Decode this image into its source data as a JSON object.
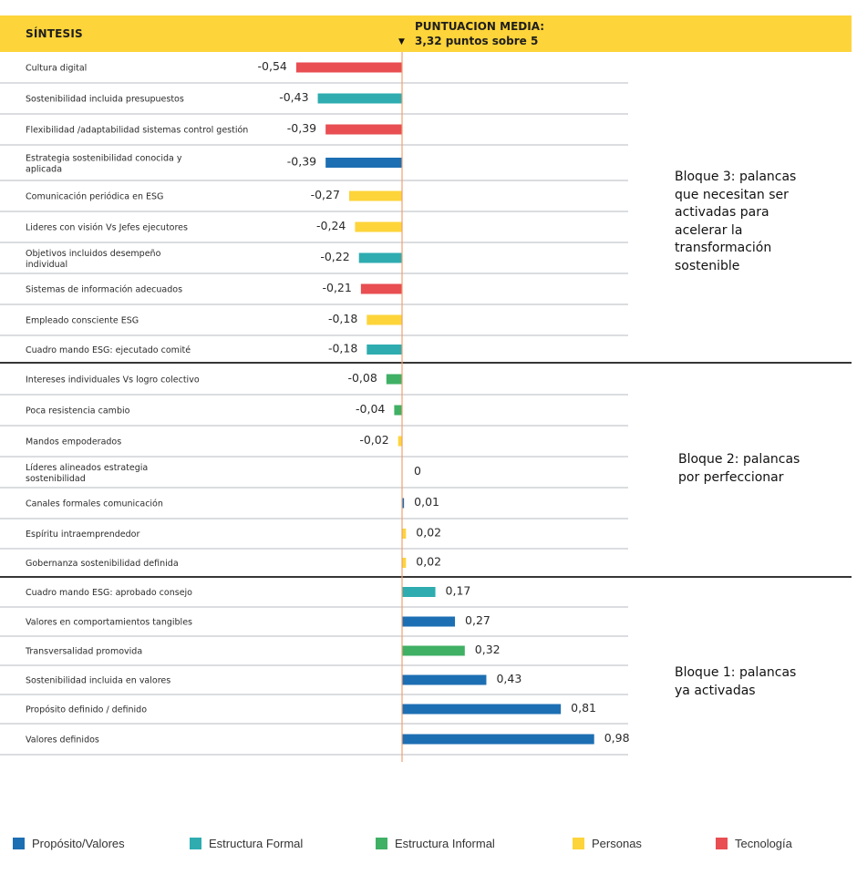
{
  "header": {
    "title": "SÍNTESIS",
    "mean_line1": "PUNTUACION MEDIA:",
    "mean_line2": "3,32 puntos sobre 5",
    "arrow": "▼",
    "color": "#fdd43a"
  },
  "colors": {
    "Propósito/Valores": "#1d6fb3",
    "Estructura Formal": "#2eacb0",
    "Estructura Informal": "#3fb064",
    "Personas": "#fdd43a",
    "Tecnología": "#e84e52",
    "zero_line": "#f0a070"
  },
  "blocks": [
    {
      "id": 3,
      "label": "Bloque 3: palancas que necesitan ser activadas para acelerar la transformación sostenible",
      "lines": [
        "Bloque 3: palancas",
        "que necesitan ser",
        "activadas para",
        "acelerar la",
        "transformación",
        "sostenible"
      ]
    },
    {
      "id": 2,
      "label": "Bloque 2: palancas por perfeccionar",
      "lines": [
        "Bloque 2: palancas",
        "por perfeccionar"
      ]
    },
    {
      "id": 1,
      "label": "Bloque 1: palancas ya activadas",
      "lines": [
        "Bloque 1: palancas",
        "ya activadas"
      ]
    }
  ],
  "legend": [
    {
      "label": "Propósito/Valores",
      "color": "#1d6fb3"
    },
    {
      "label": "Estructura Formal",
      "color": "#2eacb0"
    },
    {
      "label": "Estructura Informal",
      "color": "#3fb064"
    },
    {
      "label": "Personas",
      "color": "#fdd43a"
    },
    {
      "label": "Tecnología",
      "color": "#e84e52"
    }
  ],
  "chart_data": {
    "type": "bar",
    "orientation": "horizontal",
    "title": "SÍNTESIS",
    "reference_line": {
      "value": 0,
      "label": "PUNTUACION MEDIA: 3,32 puntos sobre 5"
    },
    "xlabel": "",
    "ylabel": "",
    "xlim": [
      -0.54,
      0.98
    ],
    "grid": false,
    "legend_position": "bottom",
    "categories": [
      "Cultura digital",
      "Sostenibilidad incluida presupuestos",
      "Flexibilidad /adaptabilidad sistemas control gestión",
      "Estrategia sostenibilidad conocida y aplicada",
      "Comunicación periódica en ESG",
      "Lideres con visión Vs Jefes ejecutores",
      "Objetivos incluidos desempeño individual",
      "Sistemas de información adecuados",
      "Empleado consciente ESG",
      "Cuadro mando ESG: ejecutado comité",
      "Intereses individuales Vs logro  colectivo",
      "Poca resistencia cambio",
      "Mandos empoderados",
      "Líderes alineados estrategia sostenibilidad",
      "Canales formales comunicación",
      "Espíritu intraemprendedor",
      "Gobernanza sostenibilidad definida",
      "Cuadro mando ESG: aprobado consejo",
      "Valores en comportamientos tangibles",
      "Transversalidad promovida",
      "Sostenibilidad incluida en valores",
      "Propósito definido / definido",
      "Valores definidos"
    ],
    "label_lines": [
      [
        "Cultura digital"
      ],
      [
        "Sostenibilidad incluida presupuestos"
      ],
      [
        "Flexibilidad /adaptabilidad sistemas control gestión"
      ],
      [
        "Estrategia sostenibilidad conocida y",
        "aplicada"
      ],
      [
        "Comunicación periódica en ESG"
      ],
      [
        "Lideres con visión Vs Jefes ejecutores"
      ],
      [
        "Objetivos incluidos desempeño",
        "individual"
      ],
      [
        "Sistemas de información adecuados"
      ],
      [
        "Empleado consciente ESG"
      ],
      [
        "Cuadro mando ESG: ejecutado comité"
      ],
      [
        "Intereses individuales Vs logro  colectivo"
      ],
      [
        "Poca resistencia cambio"
      ],
      [
        "Mandos empoderados"
      ],
      [
        "Líderes alineados estrategia",
        "sostenibilidad"
      ],
      [
        "Canales formales comunicación"
      ],
      [
        "Espíritu intraemprendedor"
      ],
      [
        "Gobernanza sostenibilidad definida"
      ],
      [
        "Cuadro mando ESG: aprobado consejo"
      ],
      [
        "Valores en comportamientos tangibles"
      ],
      [
        "Transversalidad promovida"
      ],
      [
        "Sostenibilidad incluida en valores"
      ],
      [
        "Propósito definido / definido"
      ],
      [
        "Valores definidos"
      ]
    ],
    "values": [
      -0.54,
      -0.43,
      -0.39,
      -0.39,
      -0.27,
      -0.24,
      -0.22,
      -0.21,
      -0.18,
      -0.18,
      -0.08,
      -0.04,
      -0.02,
      0,
      0.01,
      0.02,
      0.02,
      0.17,
      0.27,
      0.32,
      0.43,
      0.81,
      0.98
    ],
    "value_labels": [
      "-0,54",
      "-0,43",
      "-0,39",
      "-0,39",
      "-0,27",
      "-0,24",
      "-0,22",
      "-0,21",
      "-0,18",
      "-0,18",
      "-0,08",
      "-0,04",
      "-0,02",
      "0",
      "0,01",
      "0,02",
      "0,02",
      "0,17",
      "0,27",
      "0,32",
      "0,43",
      "0,81",
      "0,98"
    ],
    "groups": [
      "Tecnología",
      "Estructura Formal",
      "Tecnología",
      "Propósito/Valores",
      "Personas",
      "Personas",
      "Estructura Formal",
      "Tecnología",
      "Personas",
      "Estructura Formal",
      "Estructura Informal",
      "Estructura Informal",
      "Personas",
      "Propósito/Valores",
      "Propósito/Valores",
      "Personas",
      "Personas",
      "Estructura Formal",
      "Propósito/Valores",
      "Estructura Informal",
      "Propósito/Valores",
      "Propósito/Valores",
      "Propósito/Valores"
    ],
    "block_of_row": [
      3,
      3,
      3,
      3,
      3,
      3,
      3,
      3,
      3,
      3,
      2,
      2,
      2,
      2,
      2,
      2,
      2,
      1,
      1,
      1,
      1,
      1,
      1
    ]
  }
}
